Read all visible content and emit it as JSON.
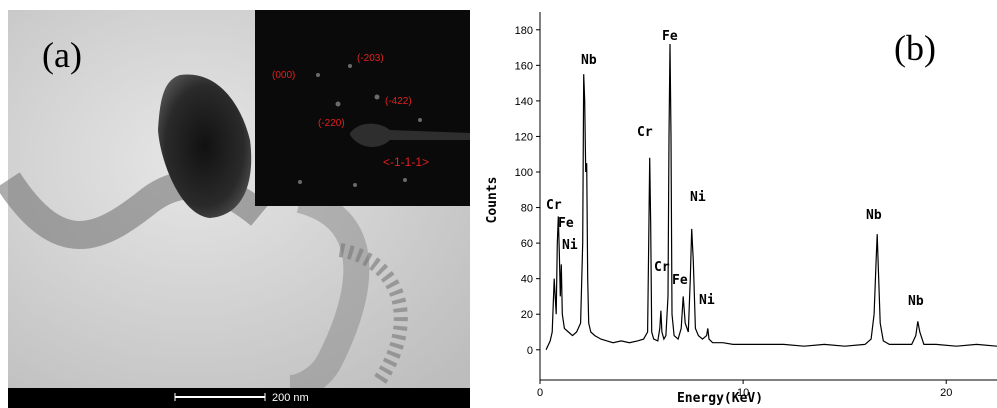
{
  "panel_a": {
    "label": "(a)",
    "inset_labels": [
      "(000)",
      "(-203)",
      "(-422)",
      "(-220)",
      "<-1-1-1>"
    ],
    "scale_bar": "200 nm"
  },
  "chart_data": {
    "type": "line",
    "panel_label": "(b)",
    "x_label": "Energy(KeV)",
    "y_label": "Counts",
    "xlim": [
      0,
      22.5
    ],
    "xticks": [
      0,
      10,
      20
    ],
    "ylim": [
      -17,
      190
    ],
    "yticks": [
      0,
      20,
      40,
      60,
      80,
      100,
      120,
      140,
      160,
      180
    ],
    "color": "#000000",
    "annotations": [
      "Cr",
      "Fe",
      "Ni",
      "Nb",
      "Cr",
      "Fe",
      "Ni",
      "Cr",
      "Fe",
      "Ni",
      "Nb",
      "Nb"
    ],
    "x": [
      0.3,
      0.5,
      0.6,
      0.7,
      0.8,
      0.85,
      0.9,
      0.95,
      1.0,
      1.05,
      1.1,
      1.2,
      1.4,
      1.6,
      1.8,
      2.0,
      2.1,
      2.15,
      2.2,
      2.25,
      2.3,
      2.35,
      2.4,
      2.5,
      2.7,
      3.0,
      3.3,
      3.6,
      4.0,
      4.4,
      4.8,
      5.1,
      5.3,
      5.35,
      5.4,
      5.45,
      5.5,
      5.6,
      5.8,
      5.9,
      5.95,
      6.0,
      6.1,
      6.2,
      6.3,
      6.35,
      6.4,
      6.45,
      6.5,
      6.6,
      6.8,
      6.95,
      7.05,
      7.15,
      7.3,
      7.4,
      7.47,
      7.55,
      7.65,
      7.8,
      8.0,
      8.2,
      8.26,
      8.32,
      8.5,
      9.0,
      9.5,
      10.0,
      11,
      12,
      13,
      14,
      15,
      16,
      16.3,
      16.45,
      16.55,
      16.6,
      16.65,
      16.75,
      16.9,
      17.2,
      17.8,
      18.3,
      18.5,
      18.6,
      18.7,
      18.9,
      19.5,
      20.5,
      21.5,
      22.5
    ],
    "values": [
      0,
      5,
      10,
      40,
      20,
      60,
      75,
      55,
      30,
      48,
      20,
      12,
      10,
      8,
      10,
      15,
      60,
      155,
      140,
      100,
      105,
      40,
      15,
      10,
      8,
      6,
      5,
      4,
      5,
      4,
      5,
      6,
      10,
      60,
      108,
      70,
      10,
      6,
      5,
      12,
      22,
      10,
      6,
      8,
      30,
      120,
      172,
      120,
      20,
      8,
      6,
      12,
      30,
      15,
      10,
      40,
      68,
      50,
      12,
      8,
      6,
      8,
      12,
      6,
      4,
      4,
      3,
      3,
      3,
      3,
      2,
      3,
      2,
      3,
      6,
      20,
      50,
      65,
      48,
      15,
      5,
      3,
      3,
      3,
      8,
      16,
      10,
      3,
      3,
      2,
      3,
      2
    ]
  }
}
